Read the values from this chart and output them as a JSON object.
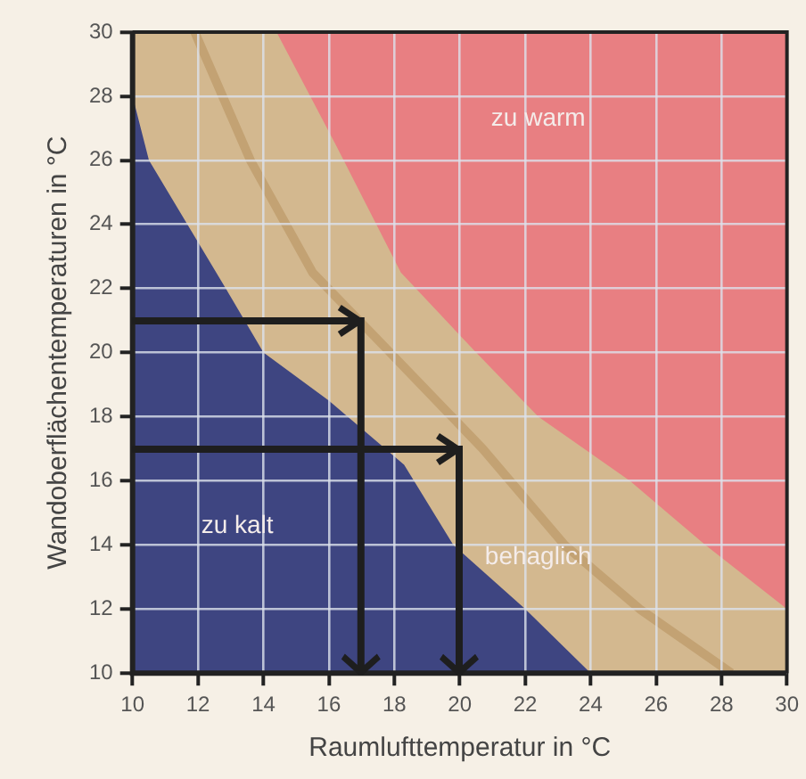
{
  "chart_data": {
    "type": "area",
    "xlabel": "Raumlufttemperatur in °C",
    "ylabel": "Wandoberflächentemperaturen in °C",
    "xlim": [
      10,
      30
    ],
    "xticks": [
      10,
      12,
      14,
      16,
      18,
      20,
      22,
      24,
      26,
      28,
      30
    ],
    "ylim": [
      10,
      30
    ],
    "yticks": [
      10,
      12,
      14,
      16,
      18,
      20,
      22,
      24,
      26,
      28,
      30
    ],
    "grid": true,
    "legend": false,
    "marker": "none",
    "series": [
      {
        "color": "#d3b88f",
        "x": [
          10,
          14.4,
          16.2,
          18.2,
          20.5,
          22.4,
          25.2,
          27.5,
          30
        ],
        "values": [
          30,
          30,
          26.5,
          22.5,
          20,
          18,
          16,
          14,
          12
        ]
      },
      {
        "type": "line",
        "color": "#c3a273",
        "x": [
          11.9,
          13.6,
          15.5,
          17.4,
          20.7,
          23.2,
          25.5,
          28.3
        ],
        "values": [
          30,
          26,
          22.5,
          20.5,
          17,
          14,
          12,
          10
        ]
      },
      {
        "color": "#3e4581",
        "x": [
          10,
          10.5,
          12.85,
          14,
          16,
          18.3,
          19.8,
          22,
          24
        ],
        "values": [
          28,
          26,
          22,
          20,
          18.5,
          16.5,
          14,
          12,
          10
        ]
      }
    ],
    "annotations": [
      "zu warm",
      "zu kalt",
      "behaglich"
    ]
  }
}
